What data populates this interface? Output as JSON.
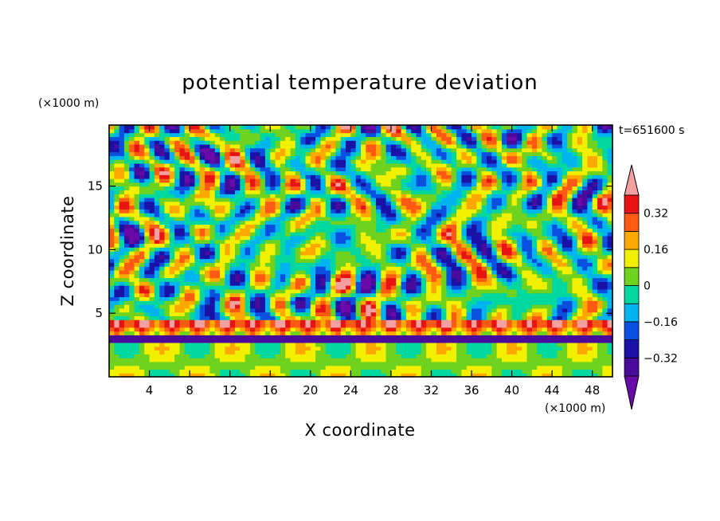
{
  "chart_data": {
    "type": "heatmap",
    "title": "potential temperature deviation",
    "xlabel": "X coordinate",
    "ylabel": "Z coordinate",
    "x_unit": "(×1000 m)",
    "y_unit": "(×1000 m)",
    "time_label": "t=651600 s",
    "xlim": [
      0,
      50
    ],
    "ylim": [
      0,
      19.8
    ],
    "xticks": [
      4,
      8,
      12,
      16,
      20,
      24,
      28,
      32,
      36,
      40,
      44,
      48
    ],
    "yticks": [
      5,
      10,
      15
    ],
    "colorbar": {
      "levels": [
        -0.4,
        -0.32,
        -0.24,
        -0.16,
        -0.08,
        0,
        0.08,
        0.16,
        0.24,
        0.32,
        0.4
      ],
      "tick_labels": [
        "0.32",
        "0.16",
        "0",
        "−0.16",
        "−0.32"
      ],
      "tick_values": [
        0.32,
        0.16,
        0,
        -0.16,
        -0.32
      ],
      "colors": [
        "#6a0aa8",
        "#4a0a9c",
        "#1a12a6",
        "#0a50e0",
        "#00b4f0",
        "#00d8a0",
        "#6ed21e",
        "#f0f000",
        "#ffa800",
        "#ff5a14",
        "#e81414",
        "#f4a0a0"
      ],
      "extend": "both"
    }
  }
}
